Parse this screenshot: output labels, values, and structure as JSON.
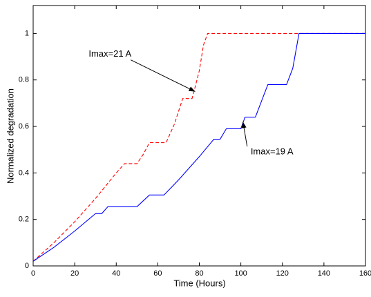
{
  "chart_data": {
    "type": "line",
    "xlabel": "Time (Hours)",
    "ylabel": "Normalized degradation",
    "xlim": [
      0,
      160
    ],
    "ylim": [
      0,
      1.12
    ],
    "xticks": [
      0,
      20,
      40,
      60,
      80,
      100,
      120,
      140,
      160
    ],
    "yticks": [
      0,
      0.2,
      0.4,
      0.6,
      0.8,
      1
    ],
    "grid": false,
    "series": [
      {
        "color": "#ff0000",
        "dash": true,
        "x": [
          0,
          10,
          20,
          30,
          40,
          44,
          50,
          53,
          56,
          64,
          68,
          72,
          76.5,
          78,
          80,
          82,
          84,
          160
        ],
        "values": [
          0.02,
          0.1,
          0.19,
          0.29,
          0.4,
          0.44,
          0.44,
          0.48,
          0.53,
          0.53,
          0.61,
          0.72,
          0.72,
          0.77,
          0.84,
          0.95,
          1,
          1
        ]
      },
      {
        "color": "#0000ff",
        "dash": false,
        "x": [
          0,
          10,
          20,
          30,
          33,
          36,
          50,
          56,
          63,
          70,
          80,
          87,
          90,
          93,
          100,
          102,
          105,
          107,
          113,
          122,
          125,
          127,
          128,
          160
        ],
        "values": [
          0.02,
          0.08,
          0.15,
          0.225,
          0.225,
          0.255,
          0.255,
          0.305,
          0.305,
          0.37,
          0.47,
          0.545,
          0.545,
          0.59,
          0.59,
          0.64,
          0.64,
          0.64,
          0.78,
          0.78,
          0.85,
          0.95,
          1,
          1
        ]
      }
    ],
    "annotations": [
      {
        "text": "Imax=21 A",
        "x": 37,
        "y": 0.91,
        "arrow_x": 78,
        "arrow_y": 0.75
      },
      {
        "text": "Imax=19 A",
        "x": 115,
        "y": 0.49,
        "arrow_x": 101,
        "arrow_y": 0.62
      }
    ]
  }
}
